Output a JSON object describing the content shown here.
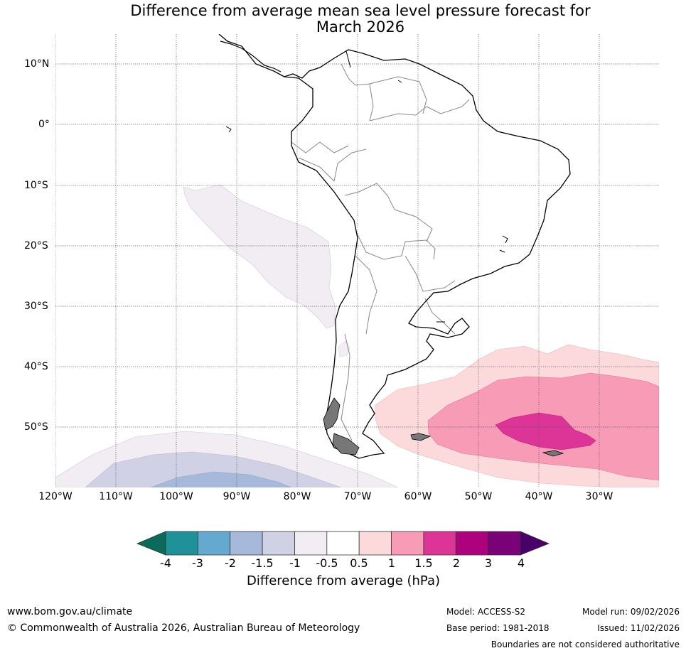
{
  "title": {
    "line1": "Difference from average mean sea level pressure forecast for",
    "line2": "March 2026"
  },
  "map": {
    "lat_labels": [
      "10°N",
      "0°",
      "10°S",
      "20°S",
      "30°S",
      "40°S",
      "50°S"
    ],
    "lon_labels": [
      "120°W",
      "110°W",
      "100°W",
      "90°W",
      "80°W",
      "70°W",
      "60°W",
      "50°W",
      "40°W",
      "30°W"
    ]
  },
  "legend": {
    "title": "Difference from average (hPa)",
    "ticks": [
      "-4",
      "-3",
      "-2",
      "-1.5",
      "-1",
      "-0.5",
      "0.5",
      "1",
      "1.5",
      "2",
      "3",
      "4"
    ],
    "colors": [
      "#0a6b5a",
      "#1f9199",
      "#65a9d0",
      "#a7b9da",
      "#d1d1e6",
      "#f1edf3",
      "#ffffff",
      "#fcdadb",
      "#f79bb6",
      "#dd3497",
      "#ae017e",
      "#7a0177",
      "#49006a"
    ]
  },
  "footer": {
    "website": "www.bom.gov.au/climate",
    "copyright": "© Commonwealth of Australia 2026, Australian Bureau of Meteorology",
    "model": "Model: ACCESS-S2",
    "base_period": "Base period: 1981-2018",
    "model_run": "Model run: 09/02/2026",
    "issued": "Issued: 11/02/2026",
    "boundaries": "Boundaries are not considered authoritative"
  }
}
